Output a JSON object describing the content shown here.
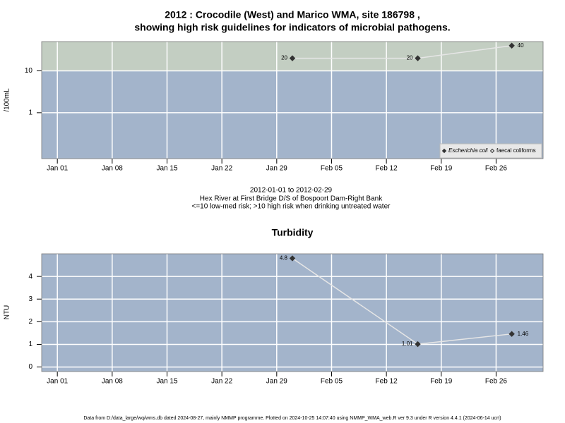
{
  "chart_data": [
    {
      "type": "line",
      "title": [
        "2012 : Crocodile (West) and Marico WMA, site 186798 ,",
        "showing high risk guidelines for indicators of microbial pathogens."
      ],
      "ylabel": "/100mL",
      "log_scale": true,
      "x": [
        "2012-01-31",
        "2012-02-16",
        "2012-02-28"
      ],
      "series": [
        {
          "name": "Escherichia coli",
          "color": "#333333",
          "marker": "filled-diamond",
          "values": [
            20,
            20,
            40
          ]
        },
        {
          "name": "faecal coliforms",
          "color": "#333333",
          "marker": "open-diamond",
          "values": [
            null,
            null,
            null
          ]
        }
      ],
      "xlim": [
        "2011-12-30",
        "2012-03-03"
      ],
      "xticks": [
        {
          "value": "2012-01-01",
          "label": "Jan 01"
        },
        {
          "value": "2012-01-08",
          "label": "Jan 08"
        },
        {
          "value": "2012-01-15",
          "label": "Jan 15"
        },
        {
          "value": "2012-01-22",
          "label": "Jan 22"
        },
        {
          "value": "2012-01-29",
          "label": "Jan 29"
        },
        {
          "value": "2012-02-05",
          "label": "Feb 05"
        },
        {
          "value": "2012-02-12",
          "label": "Feb 12"
        },
        {
          "value": "2012-02-19",
          "label": "Feb 19"
        },
        {
          "value": "2012-02-26",
          "label": "Feb 26"
        }
      ],
      "ylim": [
        0.08,
        50
      ],
      "yticks": [
        1,
        10
      ],
      "grid": true,
      "background": "#a3b4cb",
      "high_risk_above": 10,
      "high_risk_color": "#c3cec2",
      "legend": "bottom-right",
      "notes": [
        "2012-01-01 to 2012-02-29",
        "Hex River at First Bridge D/S of Bospoort Dam-Right Bank",
        "<=10 low-med risk; >10 high risk when drinking untreated water"
      ]
    },
    {
      "type": "line",
      "title": [
        "Turbidity"
      ],
      "ylabel": "NTU",
      "log_scale": false,
      "x": [
        "2012-01-31",
        "2012-02-16",
        "2012-02-28"
      ],
      "series": [
        {
          "name": "Turbidity",
          "color": "#333333",
          "marker": "filled-diamond",
          "values": [
            4.8,
            1.01,
            1.46
          ]
        }
      ],
      "xlim": [
        "2011-12-30",
        "2012-03-03"
      ],
      "xticks": [
        {
          "value": "2012-01-01",
          "label": "Jan 01"
        },
        {
          "value": "2012-01-08",
          "label": "Jan 08"
        },
        {
          "value": "2012-01-15",
          "label": "Jan 15"
        },
        {
          "value": "2012-01-22",
          "label": "Jan 22"
        },
        {
          "value": "2012-01-29",
          "label": "Jan 29"
        },
        {
          "value": "2012-02-05",
          "label": "Feb 05"
        },
        {
          "value": "2012-02-12",
          "label": "Feb 12"
        },
        {
          "value": "2012-02-19",
          "label": "Feb 19"
        },
        {
          "value": "2012-02-26",
          "label": "Feb 26"
        }
      ],
      "ylim": [
        -0.2,
        5
      ],
      "yticks": [
        0,
        1,
        2,
        3,
        4
      ],
      "grid": true,
      "background": "#a3b4cb"
    }
  ],
  "footer": "Data from D:/data_large/wq/wms.db dated 2024-08-27, mainly NMMP programme. Plotted on 2024-10-25 14:07:40 using NMMP_WMA_web.R ver 9.3 under R version 4.4.1 (2024-06-14 ucrt)"
}
